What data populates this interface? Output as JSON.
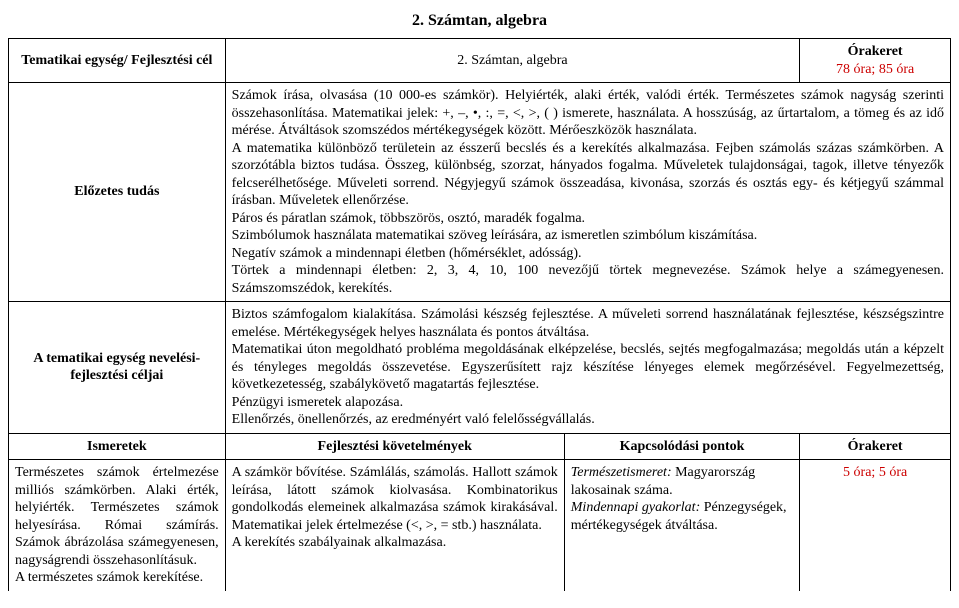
{
  "titleTop": "2. Számtan, algebra",
  "row1": {
    "left": "Tematikai egység/ Fejlesztési cél",
    "mid": "2. Számtan, algebra",
    "rightLine1": "Órakeret",
    "rightLine2": "78 óra; 85 óra"
  },
  "row2": {
    "left": "Előzetes tudás",
    "body": "Számok írása, olvasása (10 000-es számkör). Helyiérték, alaki érték, valódi érték. Természetes számok nagyság szerinti összehasonlítása. Matematikai jelek: +, –, •, :, =, <, >, ( ) ismerete, használata. A hosszúság, az űrtartalom, a tömeg és az idő mérése. Átváltások szomszédos mértékegységek között. Mérőeszközök használata.\nA matematika különböző területein az ésszerű becslés és a kerekítés alkalmazása. Fejben számolás százas számkörben. A szorzótábla biztos tudása. Összeg, különbség, szorzat, hányados fogalma. Műveletek tulajdonságai, tagok, illetve tényezők felcserélhetősége. Műveleti sorrend. Négyjegyű számok összeadása, kivonása, szorzás és osztás egy- és kétjegyű számmal írásban. Műveletek ellenőrzése.\nPáros és páratlan számok, többszörös, osztó, maradék fogalma.\nSzimbólumok használata matematikai szöveg leírására, az ismeretlen szimbólum kiszámítása.\nNegatív számok a mindennapi életben (hőmérséklet, adósság).\nTörtek a mindennapi életben: 2, 3, 4, 10, 100 nevezőjű törtek megnevezése. Számok helye a számegyenesen. Számszomszédok, kerekítés."
  },
  "row3": {
    "left": "A tematikai egység nevelési-fejlesztési céljai",
    "body": "Biztos számfogalom kialakítása. Számolási készség fejlesztése. A műveleti sorrend használatának fejlesztése, készségszintre emelése. Mértékegységek helyes használata és pontos átváltása.\nMatematikai úton megoldható probléma megoldásának elképzelése, becslés, sejtés megfogalmazása; megoldás után a képzelt és tényleges megoldás összevetése. Egyszerűsített rajz készítése lényeges elemek megőrzésével. Fegyelmezettség, következetesség, szabálykövető magatartás fejlesztése.\nPénzügyi ismeretek alapozása.\nEllenőrzés, önellenőrzés, az eredményért való felelősségvállalás."
  },
  "headers": {
    "c1": "Ismeretek",
    "c2": "Fejlesztési követelmények",
    "c3": "Kapcsolódási pontok",
    "c4": "Órakeret"
  },
  "row5": {
    "c1": "Természetes számok értelmezése milliós számkörben. Alaki érték, helyiérték. Természetes számok helyesírása. Római számírás. Számok ábrázolása számegyenesen, nagyságrendi összehasonlításuk.\nA természetes számok kerekítése.",
    "c2": "A számkör bővítése. Számlálás, számolás. Hallott számok leírása, látott számok kiolvasása. Kombinatorikus gondolkodás elemeinek alkalmazása számok kirakásával. Matematikai jelek értelmezése (<, >, = stb.) használata.\nA kerekítés szabályainak alkalmazása.",
    "c3a": "Természetismeret:",
    "c3b": " Magyarország lakosainak száma.",
    "c3c": "Mindennapi gyakorlat:",
    "c3d": " Pénzegységek, mértékegységek átváltása.",
    "c4": "5 óra; 5 óra"
  }
}
